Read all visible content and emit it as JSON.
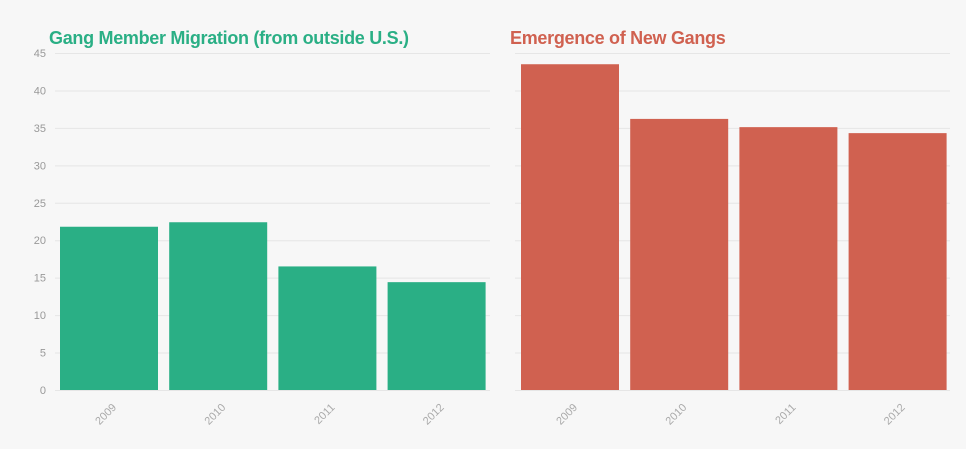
{
  "chart_data": [
    {
      "type": "bar",
      "title": "Gang Member Migration (from outside U.S.)",
      "categories": [
        "2009",
        "2010",
        "2011",
        "2012"
      ],
      "values": [
        21.8,
        22.4,
        16.5,
        14.4
      ],
      "ylim": [
        0,
        45
      ],
      "yticks": [
        "0",
        "5",
        "10",
        "15",
        "20",
        "25",
        "30",
        "35",
        "40",
        "45"
      ],
      "grid": true,
      "color": "#2aaf85"
    },
    {
      "type": "bar",
      "title": "Emergence of New Gangs",
      "categories": [
        "2009",
        "2010",
        "2011",
        "2012"
      ],
      "values": [
        43.5,
        36.2,
        35.1,
        34.3
      ],
      "ylim": [
        0,
        45
      ],
      "grid": true,
      "color": "#d06150"
    }
  ]
}
